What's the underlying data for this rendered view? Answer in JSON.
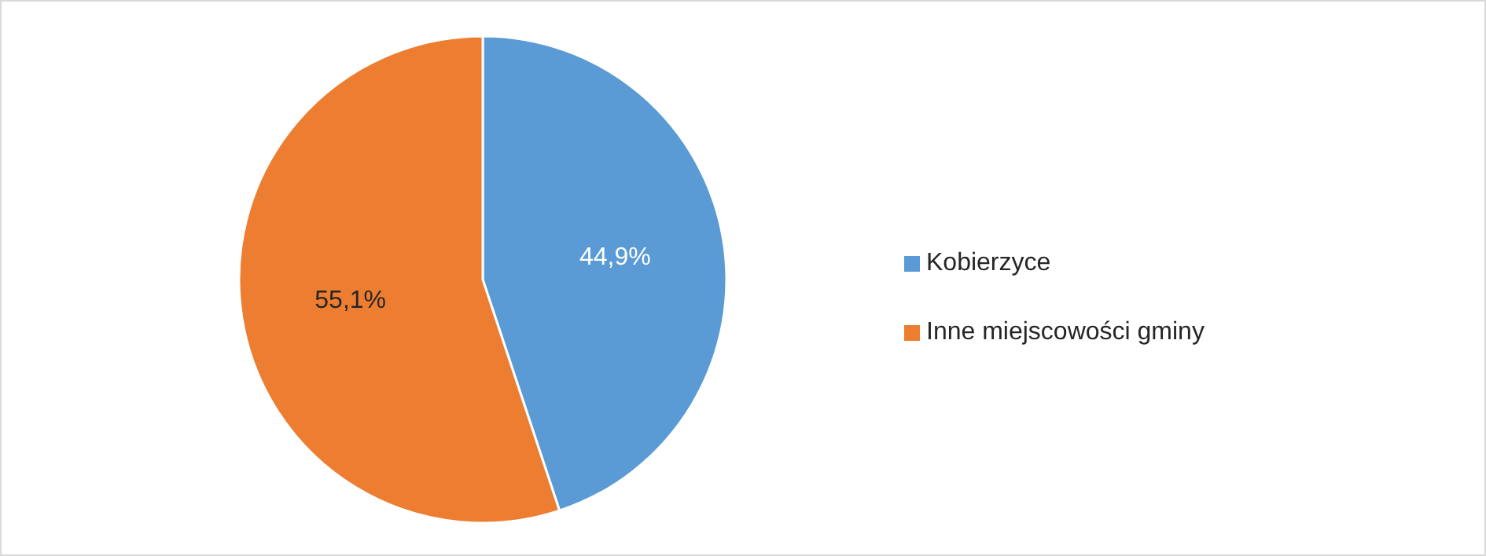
{
  "chart_data": {
    "type": "pie",
    "categories": [
      "Kobierzyce",
      "Inne miejscowości gminy"
    ],
    "values": [
      44.9,
      55.1
    ],
    "colors": [
      "#5b9bd5",
      "#ed7d31"
    ],
    "value_labels": [
      "44,9%",
      "55,1%"
    ],
    "legend": "right"
  }
}
